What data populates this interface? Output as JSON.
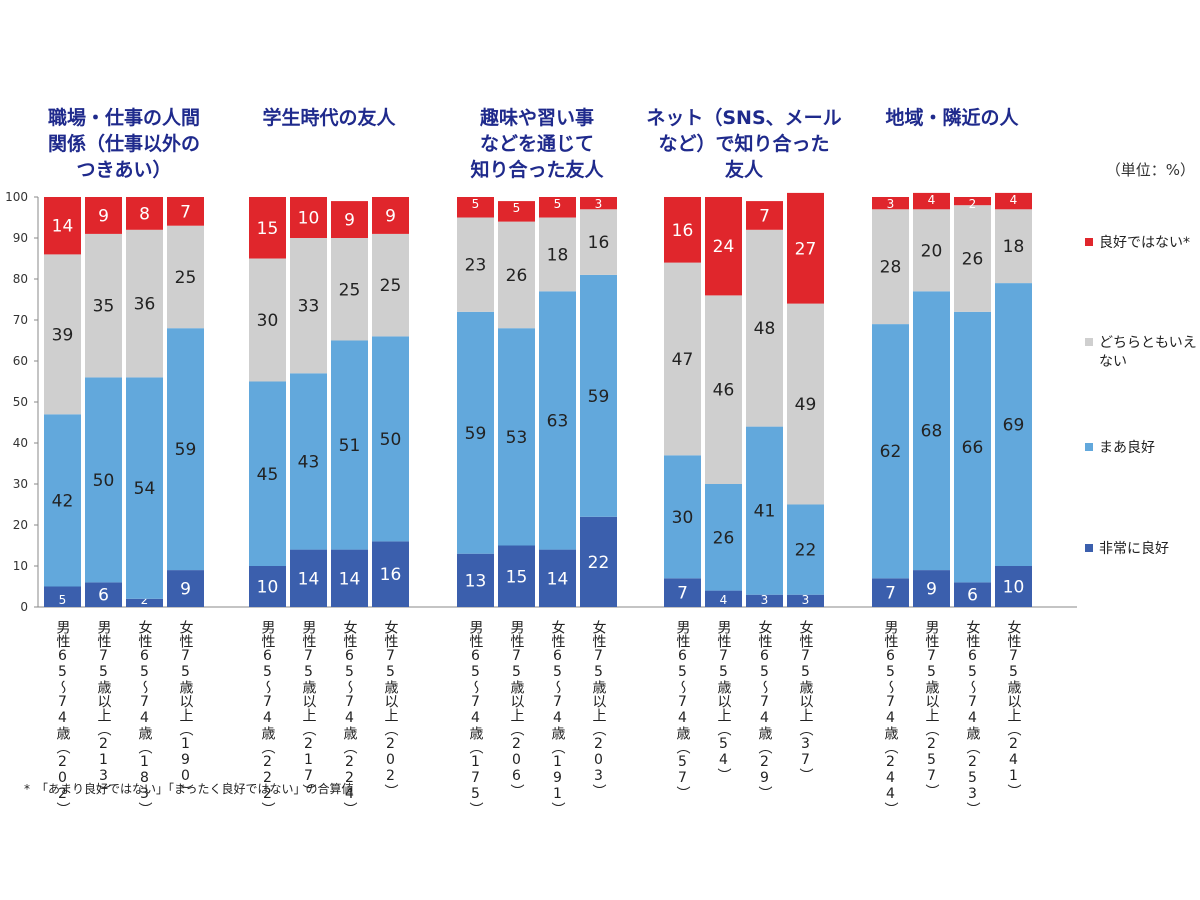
{
  "unit_label": "（単位：%）",
  "footnote": "*　「あまり良好ではない」「まったく良好ではない」の合算値",
  "chart_data": {
    "type": "bar",
    "stacked": true,
    "ylim": [
      0,
      100
    ],
    "yticks": [
      0,
      10,
      20,
      30,
      40,
      50,
      60,
      70,
      80,
      90,
      100
    ],
    "series": [
      {
        "key": "very_good",
        "name": "非常に良好",
        "color": "#3b5fad"
      },
      {
        "key": "somewhat_good",
        "name": "まあ良好",
        "color": "#62a8dc"
      },
      {
        "key": "neutral",
        "name": "どちらともいえない",
        "color": "#cfcfcf"
      },
      {
        "key": "not_good",
        "name": "良好ではない*",
        "color": "#e0262c"
      }
    ],
    "groups": [
      {
        "title": [
          "職場・仕事の人間",
          "関係（仕事以外の",
          "つきあい）"
        ],
        "bars": [
          {
            "label": "男性65～74歳（202）",
            "values": [
              5,
              42,
              39,
              14
            ]
          },
          {
            "label": "男性75歳以上（213）",
            "values": [
              6,
              50,
              35,
              9
            ]
          },
          {
            "label": "女性65～74歳（183）",
            "values": [
              2,
              54,
              36,
              8
            ]
          },
          {
            "label": "女性75歳以上（190）",
            "values": [
              9,
              59,
              25,
              7
            ]
          }
        ]
      },
      {
        "title": [
          "学生時代の友人"
        ],
        "bars": [
          {
            "label": "男性65～74歳（222）",
            "values": [
              10,
              45,
              30,
              15
            ]
          },
          {
            "label": "男性75歳以上（217）",
            "values": [
              14,
              43,
              33,
              10
            ]
          },
          {
            "label": "女性65～74歳（224）",
            "values": [
              14,
              51,
              25,
              9
            ]
          },
          {
            "label": "女性75歳以上（202）",
            "values": [
              16,
              50,
              25,
              9
            ]
          }
        ]
      },
      {
        "title": [
          "趣味や習い事",
          "などを通じて",
          "知り合った友人"
        ],
        "bars": [
          {
            "label": "男性65～74歳（175）",
            "values": [
              13,
              59,
              23,
              5
            ]
          },
          {
            "label": "男性75歳以上（206）",
            "values": [
              15,
              53,
              26,
              5
            ]
          },
          {
            "label": "女性65～74歳（191）",
            "values": [
              14,
              63,
              18,
              5
            ]
          },
          {
            "label": "女性75歳以上（203）",
            "values": [
              22,
              59,
              16,
              3
            ]
          }
        ]
      },
      {
        "title": [
          "ネット（SNS、メール",
          "など）で知り合った",
          "友人"
        ],
        "bars": [
          {
            "label": "男性65～74歳（57）",
            "values": [
              7,
              30,
              47,
              16
            ]
          },
          {
            "label": "男性75歳以上（54）",
            "values": [
              4,
              26,
              46,
              24
            ]
          },
          {
            "label": "女性65～74歳（29）",
            "values": [
              3,
              41,
              48,
              7
            ]
          },
          {
            "label": "女性75歳以上（37）",
            "values": [
              3,
              22,
              49,
              27
            ]
          }
        ]
      },
      {
        "title": [
          "地域・隣近の人"
        ],
        "bars": [
          {
            "label": "男性65～74歳（244）",
            "values": [
              7,
              62,
              28,
              3
            ]
          },
          {
            "label": "男性75歳以上（257）",
            "values": [
              9,
              68,
              20,
              4
            ]
          },
          {
            "label": "女性65～74歳（253）",
            "values": [
              6,
              66,
              26,
              2
            ]
          },
          {
            "label": "女性75歳以上（241）",
            "values": [
              10,
              69,
              18,
              4
            ]
          }
        ]
      }
    ]
  }
}
